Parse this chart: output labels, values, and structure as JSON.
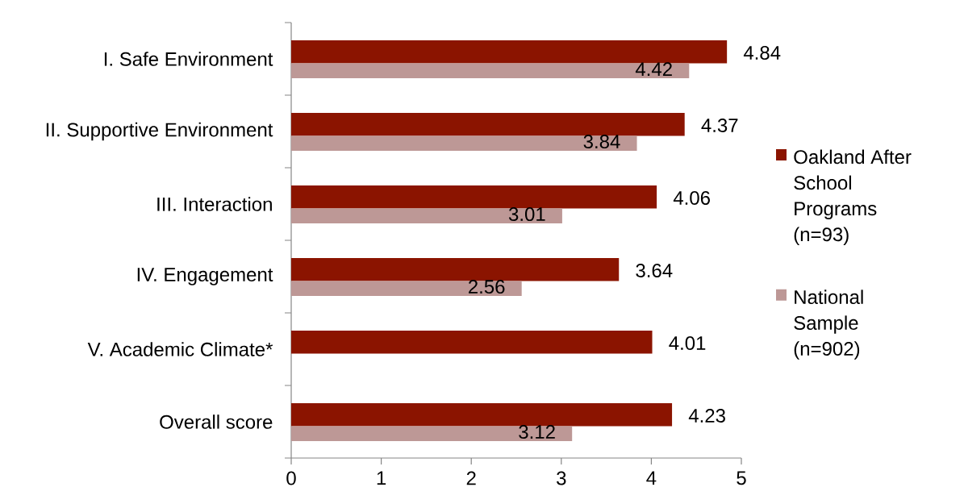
{
  "chart_data": {
    "type": "bar",
    "orientation": "horizontal",
    "categories": [
      "I. Safe Environment",
      "II. Supportive Environment",
      "III. Interaction",
      "IV. Engagement",
      "V. Academic Climate*",
      "Overall score"
    ],
    "series": [
      {
        "name": "Oakland After School Programs (n=93)",
        "color": "#8b1400",
        "values": [
          4.84,
          4.37,
          4.06,
          3.64,
          4.01,
          4.23
        ]
      },
      {
        "name": "National Sample (n=902)",
        "color": "#bd9896",
        "values": [
          4.42,
          3.84,
          3.01,
          2.56,
          null,
          3.12
        ]
      }
    ],
    "xlim": [
      0,
      5
    ],
    "xticks": [
      0,
      1,
      2,
      3,
      4,
      5
    ],
    "data_labels": true,
    "legend": "right"
  }
}
